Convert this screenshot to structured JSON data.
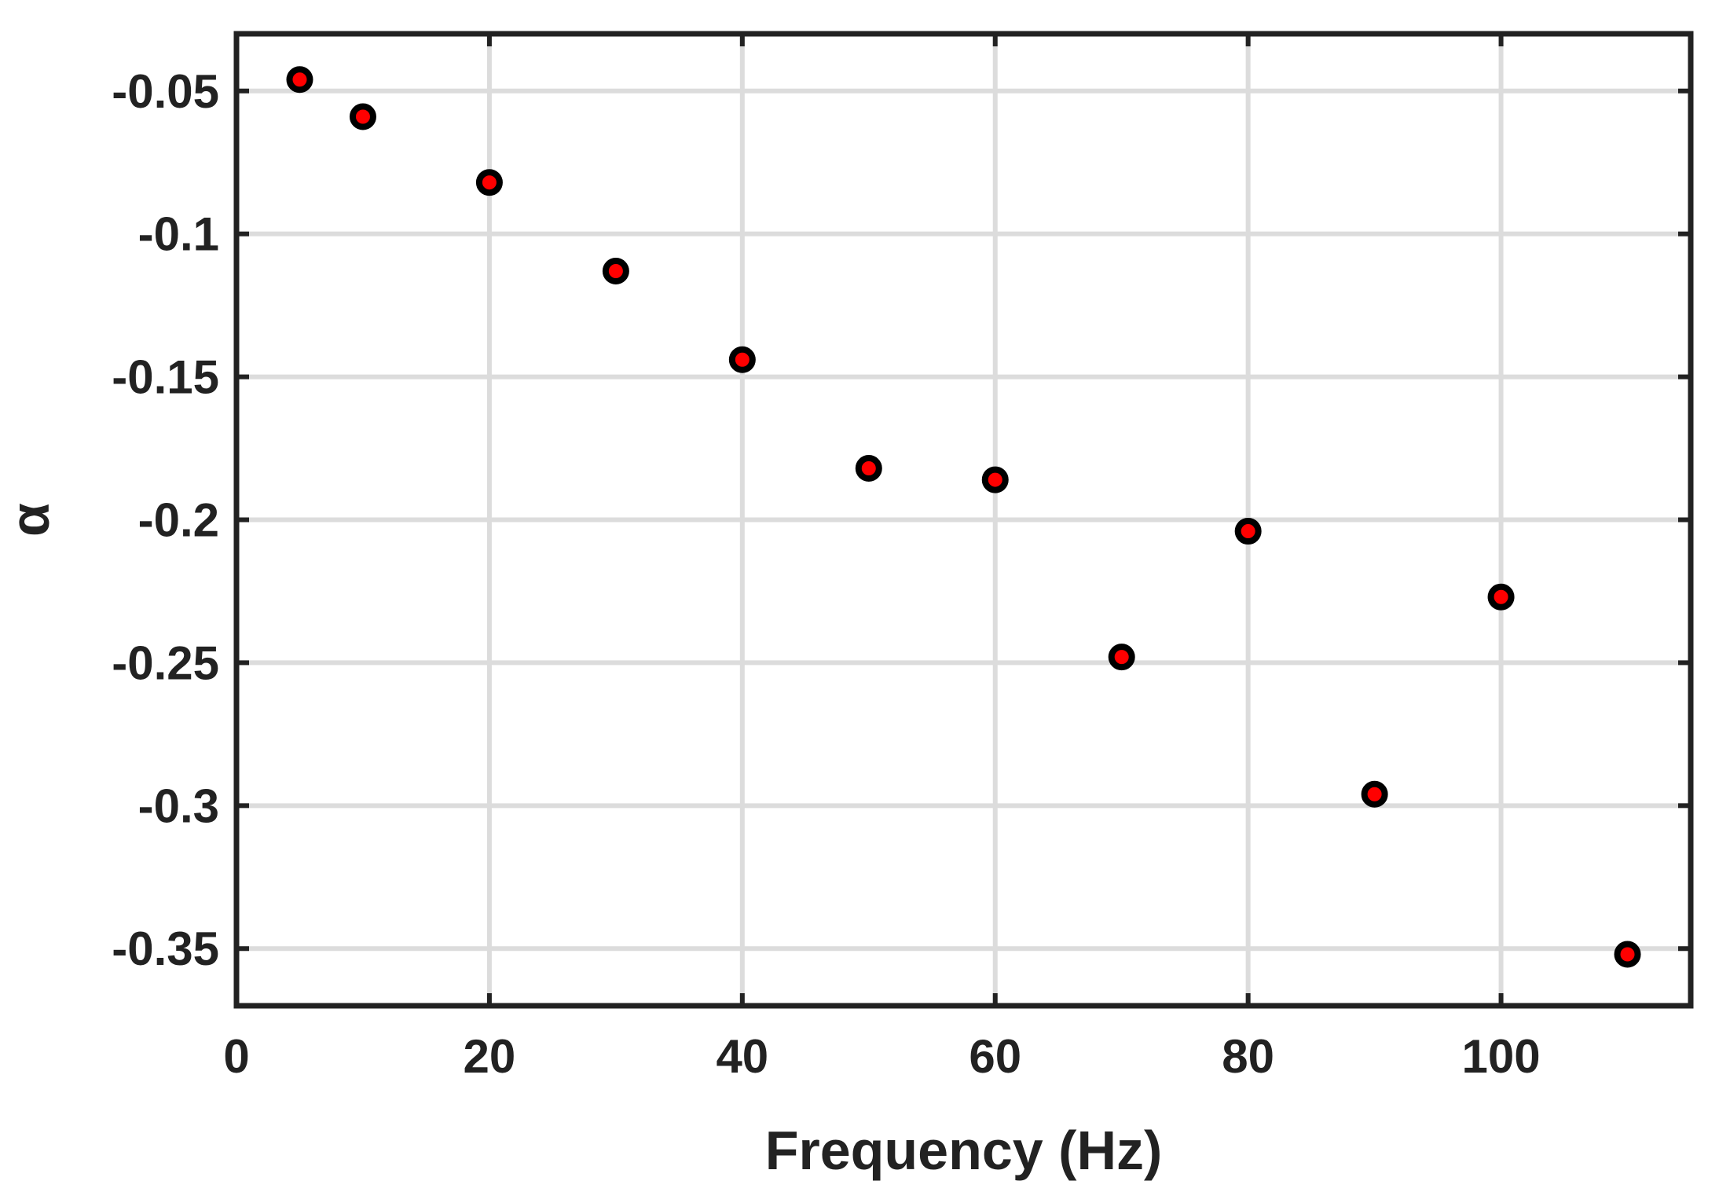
{
  "chart_data": {
    "type": "scatter",
    "title": "",
    "xlabel": "Frequency (Hz)",
    "ylabel": "α",
    "xlim": [
      0,
      115
    ],
    "ylim": [
      -0.37,
      -0.03
    ],
    "xticks": [
      0,
      20,
      40,
      60,
      80,
      100
    ],
    "yticks": [
      -0.05,
      -0.1,
      -0.15,
      -0.2,
      -0.25,
      -0.3,
      -0.35
    ],
    "xtick_labels": [
      "0",
      "20",
      "40",
      "60",
      "80",
      "100"
    ],
    "ytick_labels": [
      "-0.05",
      "-0.1",
      "-0.15",
      "-0.2",
      "-0.25",
      "-0.3",
      "-0.35"
    ],
    "grid": true,
    "marker": {
      "fill": "#ff0000",
      "edge": "#000000"
    },
    "series": [
      {
        "x": [
          5,
          10,
          20,
          30,
          40,
          50,
          60,
          70,
          80,
          90,
          100,
          110
        ],
        "y": [
          -0.046,
          -0.059,
          -0.082,
          -0.113,
          -0.144,
          -0.182,
          -0.186,
          -0.248,
          -0.204,
          -0.296,
          -0.227,
          -0.352
        ]
      }
    ]
  },
  "colors": {
    "axis": "#222222",
    "grid": "#dcdcdc",
    "background": "#ffffff"
  }
}
